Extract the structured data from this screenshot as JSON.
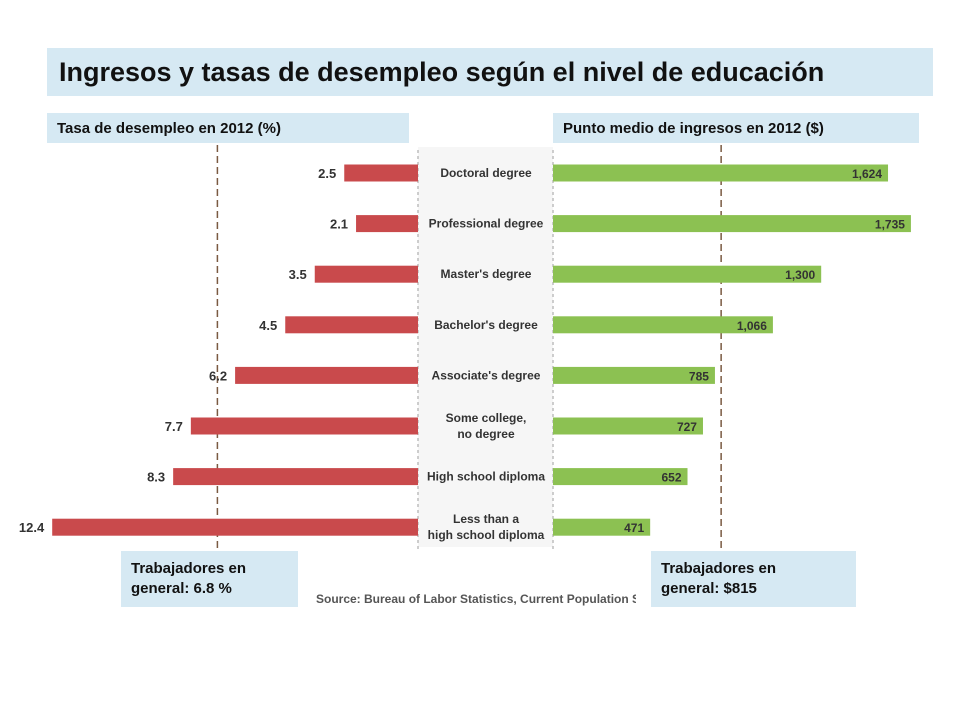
{
  "title": "Ingresos y tasas de desempleo según el nivel de educación",
  "left_header": "Tasa de desempleo en 2012 (%)",
  "right_header": "Punto medio de ingresos en 2012 ($)",
  "left_note": "Trabajadores en\ngeneral: 6.8 %",
  "right_note": "Trabajadores en\ngeneral: $815",
  "source": "Source: Bureau of Labor Statistics, Current Population Surve",
  "chart_data": {
    "type": "bar",
    "categories": [
      "Doctoral degree",
      "Professional degree",
      "Master's degree",
      "Bachelor's degree",
      "Associate's degree",
      "Some college,\nno degree",
      "High school diploma",
      "Less than a\nhigh school diploma"
    ],
    "series": [
      {
        "values": [
          2.5,
          2.1,
          3.5,
          4.5,
          6.2,
          7.7,
          8.3,
          12.4
        ],
        "labels": [
          "2.5",
          "2.1",
          "3.5",
          "4.5",
          "6.2",
          "7.7",
          "8.3",
          "12.4"
        ],
        "color": "#c94a4c",
        "reference": 6.8
      },
      {
        "values": [
          1624,
          1735,
          1300,
          1066,
          785,
          727,
          652,
          471
        ],
        "labels": [
          "1,624",
          "1,735",
          "1,300",
          "1,066",
          "785",
          "727",
          "652",
          "471"
        ],
        "color": "#8cc152",
        "reference": 815
      }
    ]
  }
}
